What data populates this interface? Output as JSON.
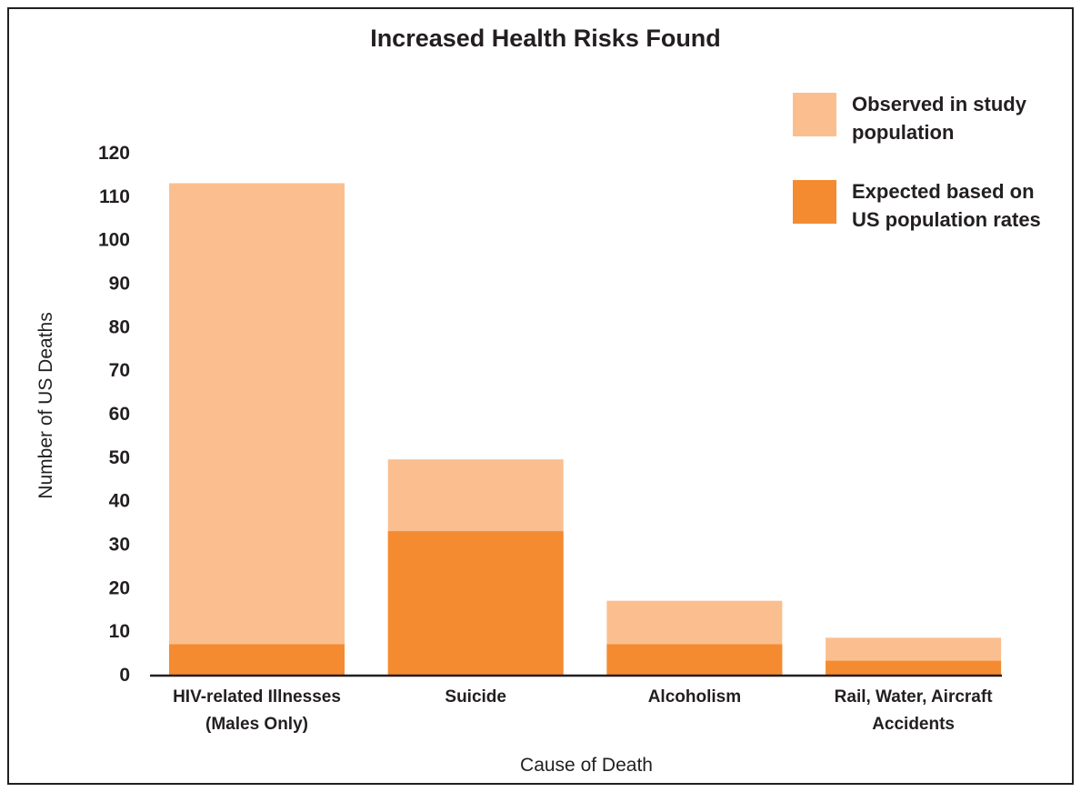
{
  "chart_data": {
    "type": "bar",
    "title": "Increased Health Risks Found",
    "xlabel": "Cause of Death",
    "ylabel": "Number of US Deaths",
    "ylim": [
      0,
      120
    ],
    "yticks": [
      "0",
      "10",
      "20",
      "30",
      "40",
      "50",
      "60",
      "70",
      "80",
      "90",
      "100",
      "110",
      "120"
    ],
    "categories": [
      [
        "HIV-related Illnesses",
        "(Males Only)"
      ],
      [
        "Suicide"
      ],
      [
        "Alcoholism"
      ],
      [
        "Rail, Water, Aircraft",
        "Accidents"
      ]
    ],
    "series": [
      {
        "name": "Observed in study population",
        "values": [
          113,
          49.5,
          17,
          8.5
        ],
        "color": "#fbbf8f"
      },
      {
        "name": "Expected based on US population rates",
        "values": [
          7,
          33,
          7,
          3.2
        ],
        "color": "#f48b31"
      }
    ],
    "legend": {
      "placement": "top-right",
      "items": [
        [
          "Observed in study",
          "population"
        ],
        [
          "Expected based on",
          "US population rates"
        ]
      ]
    },
    "grid": false
  }
}
